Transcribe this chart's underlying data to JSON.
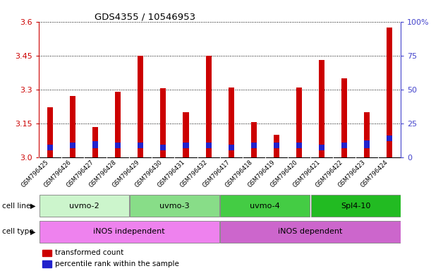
{
  "title": "GDS4355 / 10546953",
  "samples": [
    "GSM796425",
    "GSM796426",
    "GSM796427",
    "GSM796428",
    "GSM796429",
    "GSM796430",
    "GSM796431",
    "GSM796432",
    "GSM796417",
    "GSM796418",
    "GSM796419",
    "GSM796420",
    "GSM796421",
    "GSM796422",
    "GSM796423",
    "GSM796424"
  ],
  "red_values": [
    3.22,
    3.27,
    3.135,
    3.29,
    3.45,
    3.305,
    3.2,
    3.45,
    3.31,
    3.155,
    3.1,
    3.31,
    3.43,
    3.35,
    3.2,
    3.575
  ],
  "blue_bottom": [
    3.03,
    3.04,
    3.04,
    3.04,
    3.04,
    3.03,
    3.04,
    3.04,
    3.03,
    3.04,
    3.04,
    3.04,
    3.03,
    3.04,
    3.04,
    3.07
  ],
  "blue_height": [
    0.025,
    0.025,
    0.03,
    0.025,
    0.025,
    0.025,
    0.025,
    0.025,
    0.025,
    0.025,
    0.025,
    0.025,
    0.025,
    0.025,
    0.035,
    0.025
  ],
  "y_min": 3.0,
  "y_max": 3.6,
  "y_ticks_left": [
    3.0,
    3.15,
    3.3,
    3.45,
    3.6
  ],
  "y_ticks_right_labels": [
    "0",
    "25",
    "50",
    "75",
    "100%"
  ],
  "y_ticks_right_vals": [
    0,
    25,
    50,
    75,
    100
  ],
  "cell_line_groups": [
    {
      "label": "uvmo-2",
      "start": 0,
      "end": 3,
      "color": "#ccf5cc"
    },
    {
      "label": "uvmo-3",
      "start": 4,
      "end": 7,
      "color": "#88dd88"
    },
    {
      "label": "uvmo-4",
      "start": 8,
      "end": 11,
      "color": "#44cc44"
    },
    {
      "label": "Spl4-10",
      "start": 12,
      "end": 15,
      "color": "#22bb22"
    }
  ],
  "cell_type_groups": [
    {
      "label": "iNOS independent",
      "start": 0,
      "end": 7,
      "color": "#ee82ee"
    },
    {
      "label": "iNOS dependent",
      "start": 8,
      "end": 15,
      "color": "#cc66cc"
    }
  ],
  "bar_width": 0.25,
  "red_color": "#cc0000",
  "blue_color": "#2222cc",
  "left_axis_color": "#cc0000",
  "right_axis_color": "#4444cc",
  "tick_bg_color": "#cccccc"
}
